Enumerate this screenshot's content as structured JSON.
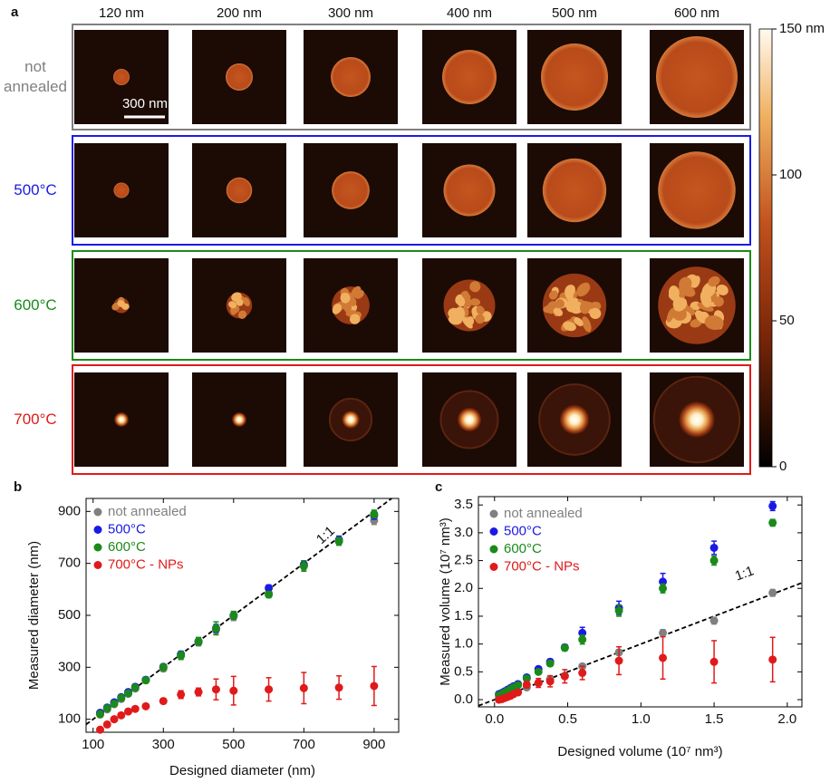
{
  "panel_a": {
    "label": "a",
    "columns": [
      "120 nm",
      "200 nm",
      "300 nm",
      "400 nm",
      "500 nm",
      "600 nm"
    ],
    "rows": [
      {
        "label": "not annealed",
        "color": "#808080"
      },
      {
        "label": "500°C",
        "color": "#1a1ae6"
      },
      {
        "label": "600°C",
        "color": "#1a8a1a"
      },
      {
        "label": "700°C",
        "color": "#e01a1a"
      }
    ],
    "scale_bar": "300 nm",
    "colorbar": {
      "lim": [
        0,
        150
      ],
      "ticks": [
        0,
        50,
        100,
        {
          "value": 150,
          "label": "150 nm"
        }
      ]
    }
  },
  "chart_data": [
    {
      "type": "scatter",
      "panel_label": "b",
      "x_label": "Designed diameter (nm)",
      "y_label": "Measured diameter (nm)",
      "reference_label": "1:1",
      "xlim": [
        80,
        970
      ],
      "ylim": [
        50,
        950
      ],
      "xticks": [
        100,
        300,
        500,
        700,
        900
      ],
      "yticks": [
        100,
        300,
        500,
        700,
        900
      ],
      "x": [
        120,
        140,
        160,
        180,
        200,
        220,
        250,
        300,
        350,
        400,
        450,
        500,
        600,
        700,
        800,
        900
      ],
      "series": [
        {
          "name": "not annealed",
          "color": "#808080",
          "values": [
            118,
            138,
            158,
            178,
            198,
            218,
            250,
            295,
            345,
            395,
            445,
            495,
            585,
            690,
            785,
            865
          ],
          "errors": [
            8,
            8,
            8,
            8,
            8,
            8,
            10,
            10,
            12,
            12,
            15,
            15,
            15,
            15,
            15,
            15
          ]
        },
        {
          "name": "500°C",
          "color": "#1a1ae6",
          "values": [
            125,
            145,
            165,
            185,
            205,
            225,
            252,
            302,
            350,
            400,
            450,
            500,
            605,
            695,
            790,
            885
          ],
          "errors": [
            8,
            8,
            8,
            8,
            8,
            8,
            10,
            10,
            12,
            12,
            15,
            15,
            12,
            15,
            15,
            15
          ]
        },
        {
          "name": "600°C",
          "color": "#1a8a1a",
          "values": [
            120,
            142,
            160,
            182,
            200,
            222,
            250,
            300,
            345,
            400,
            450,
            500,
            580,
            690,
            785,
            890
          ],
          "errors": [
            8,
            8,
            8,
            8,
            8,
            8,
            10,
            12,
            15,
            15,
            25,
            15,
            12,
            20,
            15,
            15
          ]
        },
        {
          "name": "700°C - NPs",
          "color": "#e01a1a",
          "values": [
            60,
            80,
            100,
            115,
            130,
            140,
            150,
            170,
            195,
            205,
            215,
            210,
            215,
            220,
            222,
            228
          ],
          "errors": [
            5,
            6,
            6,
            6,
            8,
            8,
            8,
            10,
            15,
            15,
            40,
            55,
            45,
            60,
            45,
            75
          ]
        }
      ]
    },
    {
      "type": "scatter",
      "panel_label": "c",
      "x_label": "Designed volume (10⁷ nm³)",
      "y_label": "Measured volume (10⁷ nm³)",
      "reference_label": "1:1",
      "xlim": [
        -0.11,
        2.1
      ],
      "ylim": [
        -0.13,
        3.65
      ],
      "xticks": [
        {
          "value": 0,
          "label": "0.0"
        },
        0.5,
        {
          "value": 1,
          "label": "1.0"
        },
        1.5,
        {
          "value": 2,
          "label": "2.0"
        }
      ],
      "yticks": [
        {
          "value": 0,
          "label": "0.0"
        },
        0.5,
        {
          "value": 1,
          "label": "1.0"
        },
        1.5,
        {
          "value": 2,
          "label": "2.0"
        },
        2.5,
        {
          "value": 3,
          "label": "3.0"
        },
        3.5
      ],
      "x": [
        0.03,
        0.05,
        0.07,
        0.09,
        0.11,
        0.13,
        0.16,
        0.22,
        0.3,
        0.38,
        0.48,
        0.6,
        0.85,
        1.15,
        1.5,
        1.9
      ],
      "series": [
        {
          "name": "not annealed",
          "color": "#808080",
          "values": [
            0.02,
            0.03,
            0.05,
            0.07,
            0.09,
            0.11,
            0.14,
            0.22,
            0.3,
            0.37,
            0.43,
            0.6,
            0.85,
            1.2,
            1.42,
            1.92
          ],
          "errors": [
            0.01,
            0.01,
            0.01,
            0.01,
            0.02,
            0.02,
            0.02,
            0.03,
            0.03,
            0.04,
            0.04,
            0.04,
            0.05,
            0.06,
            0.06,
            0.06
          ]
        },
        {
          "name": "500°C",
          "color": "#1a1ae6",
          "values": [
            0.1,
            0.12,
            0.15,
            0.18,
            0.21,
            0.24,
            0.28,
            0.4,
            0.55,
            0.68,
            0.94,
            1.2,
            1.65,
            2.12,
            2.73,
            3.48
          ],
          "errors": [
            0.01,
            0.01,
            0.02,
            0.02,
            0.02,
            0.02,
            0.03,
            0.03,
            0.04,
            0.05,
            0.05,
            0.1,
            0.12,
            0.15,
            0.12,
            0.08
          ]
        },
        {
          "name": "600°C",
          "color": "#1a8a1a",
          "values": [
            0.08,
            0.1,
            0.13,
            0.16,
            0.19,
            0.22,
            0.26,
            0.38,
            0.5,
            0.65,
            0.93,
            1.08,
            1.6,
            2.0,
            2.5,
            3.18
          ],
          "errors": [
            0.01,
            0.01,
            0.02,
            0.02,
            0.02,
            0.02,
            0.03,
            0.03,
            0.04,
            0.05,
            0.05,
            0.08,
            0.1,
            0.08,
            0.08,
            0.06
          ]
        },
        {
          "name": "700°C - NPs",
          "color": "#e01a1a",
          "values": [
            0.0,
            0.01,
            0.03,
            0.05,
            0.07,
            0.1,
            0.13,
            0.27,
            0.3,
            0.33,
            0.42,
            0.48,
            0.7,
            0.75,
            0.68,
            0.72
          ],
          "errors": [
            0.01,
            0.01,
            0.02,
            0.02,
            0.03,
            0.03,
            0.04,
            0.06,
            0.08,
            0.1,
            0.12,
            0.12,
            0.25,
            0.38,
            0.38,
            0.4
          ]
        }
      ]
    }
  ]
}
